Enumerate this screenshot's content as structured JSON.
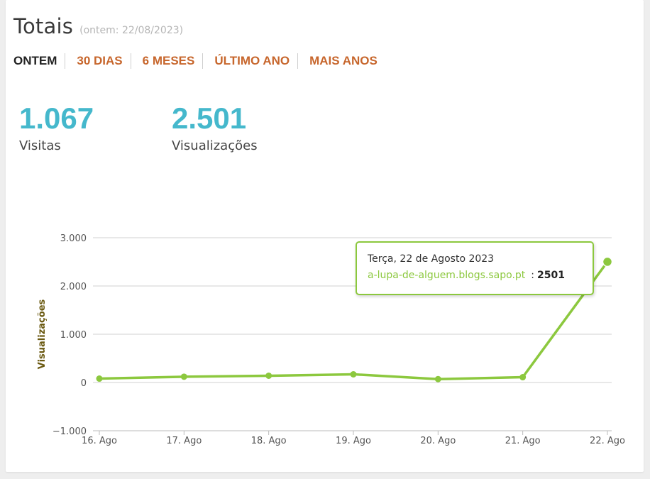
{
  "header": {
    "title": "Totais",
    "subtitle": "(ontem: 22/08/2023)"
  },
  "tabs": [
    {
      "label": "ONTEM",
      "active": true
    },
    {
      "label": "30 DIAS",
      "active": false
    },
    {
      "label": "6 MESES",
      "active": false
    },
    {
      "label": "ÚLTIMO ANO",
      "active": false
    },
    {
      "label": "MAIS ANOS",
      "active": false
    }
  ],
  "stats": {
    "visits": {
      "value": "1.067",
      "label": "Visitas"
    },
    "views": {
      "value": "2.501",
      "label": "Visualizações"
    }
  },
  "colors": {
    "accent_tab": "#c7662c",
    "stat_value": "#45b8cc",
    "series_line": "#8cc83e",
    "axis_title": "#6b5a12"
  },
  "tooltip": {
    "date": "Terça, 22 de Agosto 2023",
    "series": "a-lupa-de-alguem.blogs.sapo.pt",
    "separator": ":",
    "value": "2501"
  },
  "chart_data": {
    "type": "line",
    "categories": [
      "16. Ago",
      "17. Ago",
      "18. Ago",
      "19. Ago",
      "20. Ago",
      "21. Ago",
      "22. Ago"
    ],
    "series": [
      {
        "name": "a-lupa-de-alguem.blogs.sapo.pt",
        "values": [
          80,
          120,
          140,
          170,
          70,
          110,
          2501
        ]
      }
    ],
    "ylabel": "Visualizações",
    "yticks": [
      -1000,
      0,
      1000,
      2000,
      3000
    ],
    "ytick_labels": [
      "−1.000",
      "0",
      "1.000",
      "2.000",
      "3.000"
    ],
    "ylim": [
      -1000,
      3000
    ],
    "grid": true,
    "highlighted_point": 6
  }
}
